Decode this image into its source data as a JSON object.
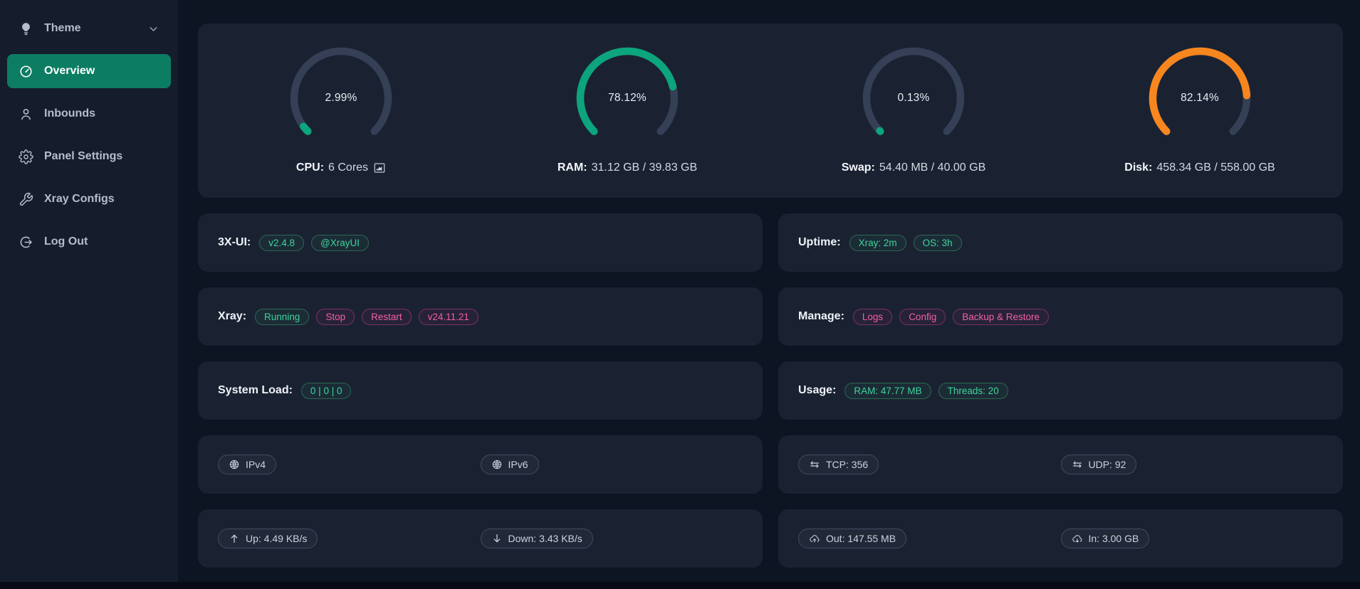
{
  "theme_colors": {
    "sidebar_active_green": "#0c7d63",
    "gauge_green": "#0ca57d",
    "gauge_orange": "#f8861f",
    "gauge_track": "#353f55",
    "badge_green_text": "#3fd49c",
    "badge_pink_text": "#f45fa5",
    "card_background": "#1a2232"
  },
  "sidebar": {
    "items": [
      {
        "name": "theme",
        "label": "Theme",
        "icon": "lightbulb-icon",
        "chevron": true,
        "active": false
      },
      {
        "name": "overview",
        "label": "Overview",
        "icon": "dashboard-icon",
        "chevron": false,
        "active": true
      },
      {
        "name": "inbounds",
        "label": "Inbounds",
        "icon": "user-icon",
        "chevron": false,
        "active": false
      },
      {
        "name": "panel-settings",
        "label": "Panel Settings",
        "icon": "gear-icon",
        "chevron": false,
        "active": false
      },
      {
        "name": "xray-configs",
        "label": "Xray Configs",
        "icon": "wrench-icon",
        "chevron": false,
        "active": false
      },
      {
        "name": "log-out",
        "label": "Log Out",
        "icon": "logout-icon",
        "chevron": false,
        "active": false
      }
    ]
  },
  "gauges": [
    {
      "name": "cpu-gauge",
      "percent": 2.99,
      "display": "2.99%",
      "color": "#0ca57d",
      "label_key": "CPU:",
      "label_value": "6 Cores",
      "chart_icon": true
    },
    {
      "name": "ram-gauge",
      "percent": 78.12,
      "display": "78.12%",
      "color": "#0ca57d",
      "label_key": "RAM:",
      "label_value": "31.12 GB / 39.83 GB",
      "chart_icon": false
    },
    {
      "name": "swap-gauge",
      "percent": 0.13,
      "display": "0.13%",
      "color": "#0ca57d",
      "label_key": "Swap:",
      "label_value": "54.40 MB / 40.00 GB",
      "chart_icon": false
    },
    {
      "name": "disk-gauge",
      "percent": 82.14,
      "display": "82.14%",
      "color": "#f8861f",
      "label_key": "Disk:",
      "label_value": "458.34 GB / 558.00 GB",
      "chart_icon": false
    }
  ],
  "status_rows": [
    {
      "name": "xui-version-card",
      "label": "3X-UI:",
      "badges": [
        {
          "name": "xui-version-badge",
          "text": "v2.4.8",
          "style": "green",
          "interactable": true
        },
        {
          "name": "xui-telegram-badge",
          "text": "@XrayUI",
          "style": "green",
          "interactable": true
        }
      ]
    },
    {
      "name": "uptime-card",
      "label": "Uptime:",
      "badges": [
        {
          "name": "uptime-xray-badge",
          "text": "Xray: 2m",
          "style": "green",
          "interactable": false
        },
        {
          "name": "uptime-os-badge",
          "text": "OS: 3h",
          "style": "green",
          "interactable": false
        }
      ]
    },
    {
      "name": "xray-card",
      "label": "Xray:",
      "badges": [
        {
          "name": "xray-status-badge",
          "text": "Running",
          "style": "green",
          "interactable": false
        },
        {
          "name": "xray-stop-button",
          "text": "Stop",
          "style": "pink",
          "interactable": true
        },
        {
          "name": "xray-restart-button",
          "text": "Restart",
          "style": "pink",
          "interactable": true
        },
        {
          "name": "xray-version-badge",
          "text": "v24.11.21",
          "style": "pink",
          "interactable": true
        }
      ]
    },
    {
      "name": "manage-card",
      "label": "Manage:",
      "badges": [
        {
          "name": "logs-button",
          "text": "Logs",
          "style": "pink",
          "interactable": true
        },
        {
          "name": "config-button",
          "text": "Config",
          "style": "pink",
          "interactable": true
        },
        {
          "name": "backup-restore-button",
          "text": "Backup & Restore",
          "style": "pink",
          "interactable": true
        }
      ]
    },
    {
      "name": "system-load-card",
      "label": "System Load:",
      "badges": [
        {
          "name": "system-load-badge",
          "text": "0 | 0 | 0",
          "style": "green",
          "interactable": false
        }
      ]
    },
    {
      "name": "usage-card",
      "label": "Usage:",
      "badges": [
        {
          "name": "usage-ram-badge",
          "text": "RAM: 47.77 MB",
          "style": "green",
          "interactable": false
        },
        {
          "name": "usage-threads-badge",
          "text": "Threads: 20",
          "style": "green",
          "interactable": false
        }
      ]
    },
    {
      "name": "ip-card",
      "pills": [
        {
          "name": "ipv4-pill",
          "icon": "globe-icon",
          "text": "IPv4",
          "interactable": true
        },
        {
          "name": "ipv6-pill",
          "icon": "globe-icon",
          "text": "IPv6",
          "interactable": true
        }
      ]
    },
    {
      "name": "connections-card",
      "pills": [
        {
          "name": "tcp-count-pill",
          "icon": "transfer-icon",
          "text": "TCP: 356",
          "interactable": false
        },
        {
          "name": "udp-count-pill",
          "icon": "transfer-icon",
          "text": "UDP: 92",
          "interactable": false
        }
      ]
    },
    {
      "name": "speed-card",
      "pills": [
        {
          "name": "upload-speed-pill",
          "icon": "up-arrow-icon",
          "text": "Up: 4.49 KB/s",
          "interactable": false
        },
        {
          "name": "download-speed-pill",
          "icon": "down-arrow-icon",
          "text": "Down: 3.43 KB/s",
          "interactable": false
        }
      ]
    },
    {
      "name": "traffic-card",
      "pills": [
        {
          "name": "traffic-out-pill",
          "icon": "cloud-up-icon",
          "text": "Out: 147.55 MB",
          "interactable": false
        },
        {
          "name": "traffic-in-pill",
          "icon": "cloud-down-icon",
          "text": "In: 3.00 GB",
          "interactable": false
        }
      ]
    }
  ]
}
